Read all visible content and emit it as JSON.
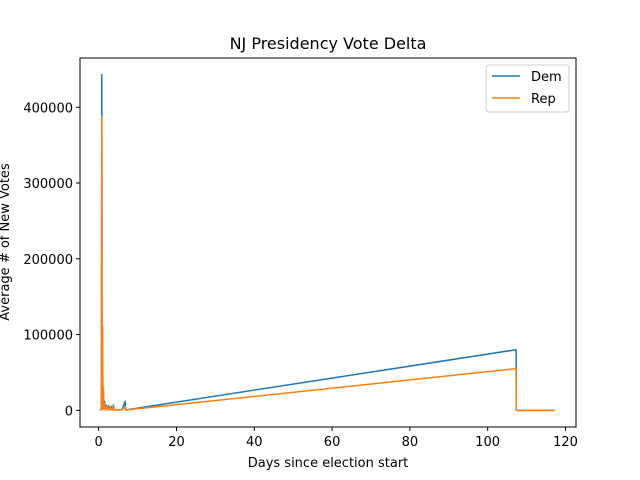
{
  "chart_data": {
    "type": "line",
    "title": "NJ Presidency Vote Delta",
    "xlabel": "Days since election start",
    "ylabel": "Average # of New Votes",
    "xlim": [
      -4.8,
      122.7
    ],
    "ylim": [
      -22000,
      465000
    ],
    "xticks": [
      0,
      20,
      40,
      60,
      80,
      100,
      120
    ],
    "yticks": [
      0,
      100000,
      200000,
      300000,
      400000
    ],
    "grid": false,
    "legend": "top-right",
    "series": [
      {
        "name": "Dem",
        "color": "#1f77b4",
        "x": [
          0.3,
          0.7,
          0.8,
          0.9,
          1.0,
          1.1,
          1.2,
          1.3,
          1.5,
          1.7,
          2.0,
          2.3,
          2.6,
          2.9,
          3.2,
          3.5,
          3.8,
          4.0,
          4.4,
          5.0,
          6.0,
          6.8,
          6.9,
          7.0,
          107.3,
          107.35,
          117.3
        ],
        "y": [
          0,
          1000,
          443000,
          5000,
          110000,
          2000,
          30000,
          2000,
          12000,
          1000,
          7000,
          500,
          6000,
          500,
          5000,
          500,
          7000,
          500,
          1000,
          500,
          1000,
          12000,
          1000,
          500,
          80000,
          0,
          0
        ]
      },
      {
        "name": "Rep",
        "color": "#ff7f0e",
        "x": [
          0.3,
          0.7,
          0.8,
          0.9,
          1.0,
          1.1,
          1.2,
          1.3,
          1.5,
          1.7,
          2.0,
          2.3,
          2.6,
          2.9,
          3.2,
          3.5,
          3.8,
          4.0,
          4.4,
          5.0,
          6.0,
          6.8,
          6.9,
          7.0,
          107.3,
          107.35,
          117.3
        ],
        "y": [
          0,
          800,
          388000,
          4000,
          112000,
          1500,
          30000,
          1500,
          9000,
          800,
          5000,
          400,
          4000,
          400,
          3500,
          400,
          5000,
          400,
          800,
          400,
          800,
          5000,
          800,
          400,
          55000,
          0,
          0
        ]
      }
    ]
  }
}
